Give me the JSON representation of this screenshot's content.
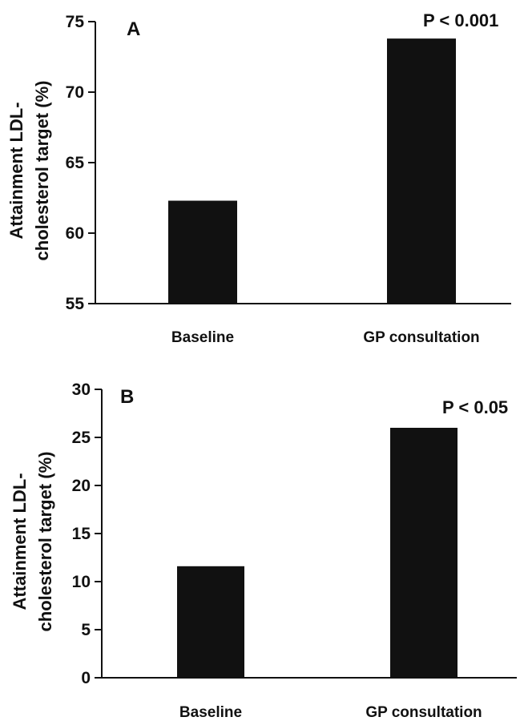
{
  "chart_data": [
    {
      "type": "bar",
      "panel_label": "A",
      "ylabel_lines": [
        "Attainment LDL-",
        "cholesterol target (%)"
      ],
      "categories": [
        "Baseline",
        "GP consultation"
      ],
      "values": [
        62.3,
        73.8
      ],
      "ylim": [
        55,
        75
      ],
      "yticks": [
        55,
        60,
        65,
        70,
        75
      ],
      "annotation": "P < 0.001",
      "bar_color": "#111111",
      "grid": false
    },
    {
      "type": "bar",
      "panel_label": "B",
      "ylabel_lines": [
        "Attainment LDL-",
        "cholesterol target (%)"
      ],
      "categories": [
        "Baseline",
        "GP consultation"
      ],
      "values": [
        11.6,
        26.0
      ],
      "ylim": [
        0,
        30
      ],
      "yticks": [
        0,
        5,
        10,
        15,
        20,
        25,
        30
      ],
      "annotation": "P < 0.05",
      "bar_color": "#111111",
      "grid": false
    }
  ]
}
